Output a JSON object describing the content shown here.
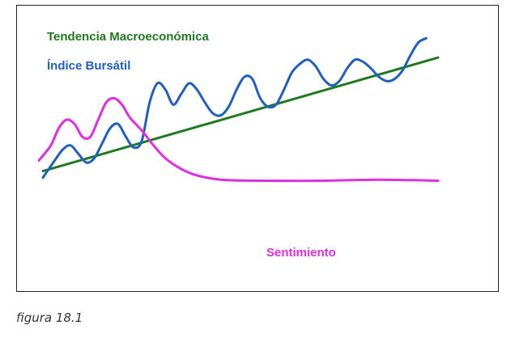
{
  "caption": "figura 18.1",
  "chart_data": {
    "type": "line",
    "title": "",
    "xlabel": "",
    "ylabel": "",
    "grid": false,
    "axes_visible": false,
    "xlim": [
      0,
      100
    ],
    "ylim": [
      0,
      100
    ],
    "series": [
      {
        "name": "Tendencia Macroeconómica",
        "color": "#1f7a1f",
        "x": [
          0,
          100
        ],
        "y": [
          36,
          89
        ]
      },
      {
        "name": "Índice Bursátil",
        "color": "#1f5fbf",
        "x": [
          0,
          3,
          5,
          7,
          9,
          11,
          13,
          15,
          17,
          19,
          21,
          23,
          25,
          27,
          29,
          31,
          33,
          35,
          37,
          39,
          41,
          43,
          45,
          47,
          49,
          51,
          53,
          55,
          57,
          59,
          61,
          63,
          65,
          67,
          69,
          71,
          73,
          75,
          77,
          79,
          81,
          83,
          85,
          87,
          89,
          91,
          93,
          95,
          97
        ],
        "y": [
          33,
          41,
          46,
          48,
          44,
          40,
          42,
          49,
          56,
          58,
          52,
          47,
          50,
          68,
          77,
          74,
          67,
          72,
          77,
          74,
          68,
          63,
          62,
          66,
          74,
          80,
          79,
          70,
          66,
          67,
          74,
          82,
          86,
          88,
          85,
          79,
          76,
          78,
          84,
          88,
          87,
          84,
          80,
          78,
          79,
          83,
          90,
          96,
          98
        ]
      },
      {
        "name": "Sentimiento",
        "color": "#e02de0",
        "x": [
          -1,
          2,
          4,
          6,
          8,
          10,
          12,
          14,
          16,
          18,
          20,
          22,
          25,
          28,
          31,
          35,
          39,
          45,
          55,
          70,
          85,
          100
        ],
        "y": [
          41,
          48,
          56,
          60,
          58,
          52,
          52,
          60,
          68,
          70,
          67,
          61,
          55,
          48,
          42,
          37,
          34,
          32,
          31.5,
          31.5,
          32,
          31.5
        ]
      }
    ]
  },
  "legend": {
    "macro": "Tendencia Macroeconómica",
    "indice": "Índice Bursátil",
    "sentimiento": "Sentimiento"
  },
  "colors": {
    "macro": "#1f7a1f",
    "indice": "#1f5fbf",
    "sentimiento": "#e02de0"
  }
}
